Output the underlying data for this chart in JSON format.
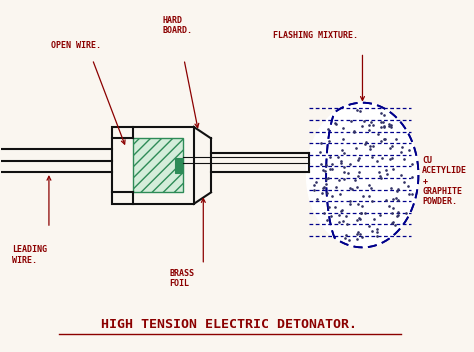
{
  "title": "HIGH TENSION ELECTRIC DETONATOR.",
  "title_color": "#8B0000",
  "title_fontsize": 9.5,
  "background_color": "#faf6f0",
  "label_color": "#8B0000",
  "diagram_color": "#111111",
  "hatch_color": "#2e8b57",
  "hatch_face": "#d4edda",
  "dashed_color": "#00008B",
  "dot_color": "#333366",
  "labels": {
    "open_wire": "OPEN WIRE.",
    "hard_board": "HARD\nBOARD.",
    "flashing_mixture": "FLASHING MIXTURE.",
    "leading_wire": "LEADING\nWIRE.",
    "brass_foil": "BRASS\nFOIL",
    "cu_acetylide": "CU\nACETYLIDE\n+\nGRAPHITE\nPOWDER."
  }
}
